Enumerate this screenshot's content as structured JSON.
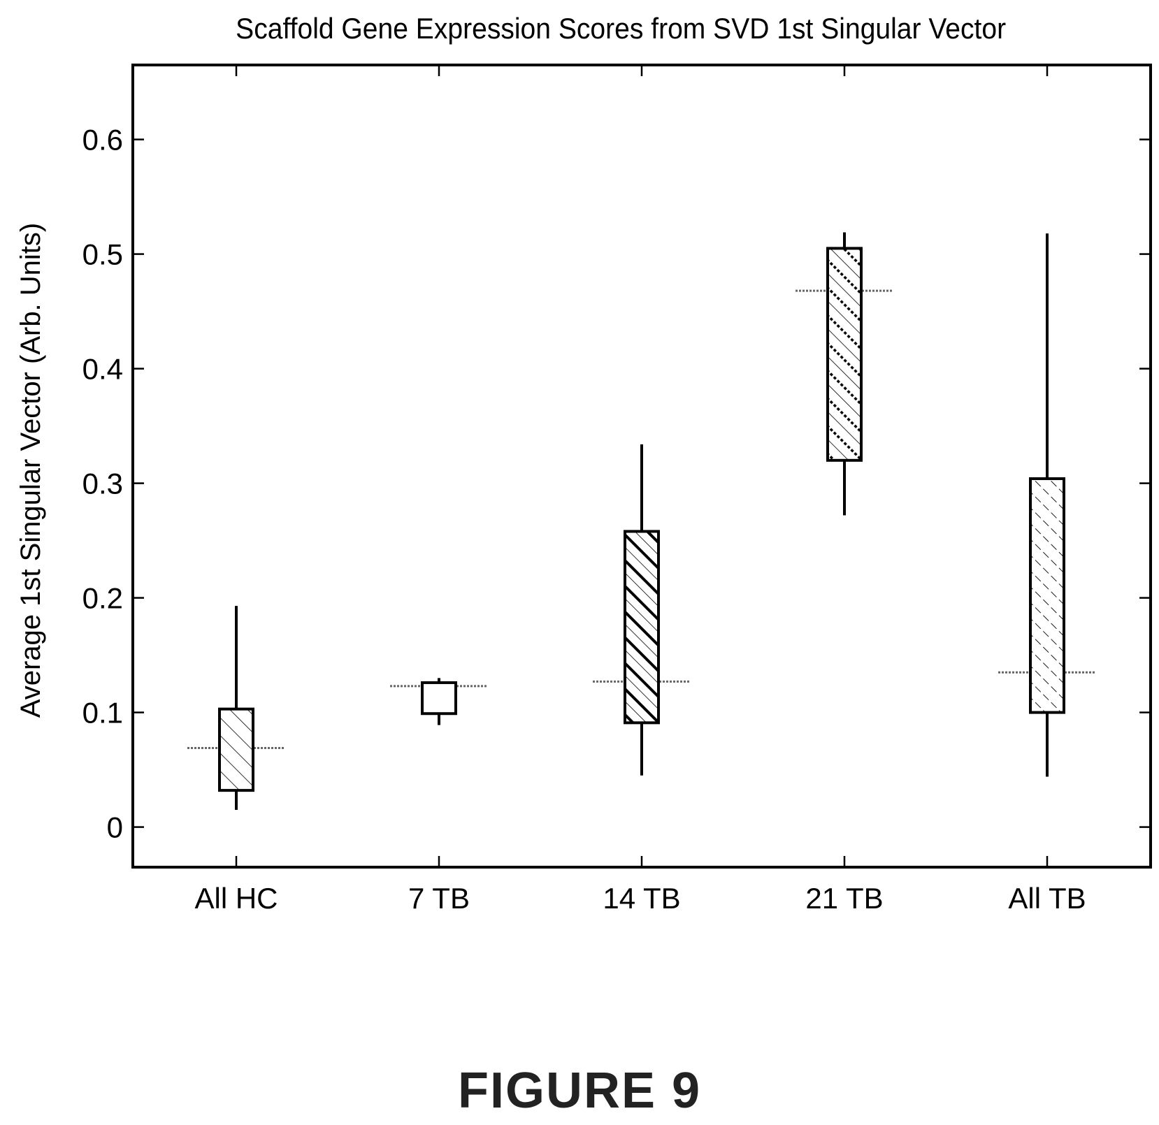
{
  "chart_data": {
    "type": "box",
    "title": "Scaffold Gene Expression Scores from SVD 1st Singular Vector",
    "xlabel": "",
    "ylabel": "Average 1st Singular Vector (Arb. Units)",
    "ylim": [
      -0.035,
      0.665
    ],
    "yticks": [
      "0",
      "0.1",
      "0.2",
      "0.3",
      "0.4",
      "0.5",
      "0.6"
    ],
    "ytick_values": [
      0,
      0.1,
      0.2,
      0.3,
      0.4,
      0.5,
      0.6
    ],
    "grid": false,
    "categories": [
      "All HC",
      "7 TB",
      "14 TB",
      "21 TB",
      "All TB"
    ],
    "boxes": [
      {
        "label": "All HC",
        "whisker_low": 0.015,
        "q1": 0.032,
        "median": 0.069,
        "q3": 0.103,
        "whisker_high": 0.193,
        "pattern": "hatch-thin"
      },
      {
        "label": "7 TB",
        "whisker_low": 0.089,
        "q1": 0.099,
        "median": 0.123,
        "q3": 0.126,
        "whisker_high": 0.13,
        "pattern": "none"
      },
      {
        "label": "14 TB",
        "whisker_low": 0.045,
        "q1": 0.091,
        "median": 0.127,
        "q3": 0.258,
        "whisker_high": 0.334,
        "pattern": "hatch-bold"
      },
      {
        "label": "21 TB",
        "whisker_low": 0.272,
        "q1": 0.32,
        "median": 0.468,
        "q3": 0.505,
        "whisker_high": 0.519,
        "pattern": "hatch-dotted"
      },
      {
        "label": "All TB",
        "whisker_low": 0.044,
        "q1": 0.1,
        "median": 0.135,
        "q3": 0.304,
        "whisker_high": 0.518,
        "pattern": "hatch-dashed"
      }
    ]
  },
  "figure_caption": "FIGURE 9"
}
